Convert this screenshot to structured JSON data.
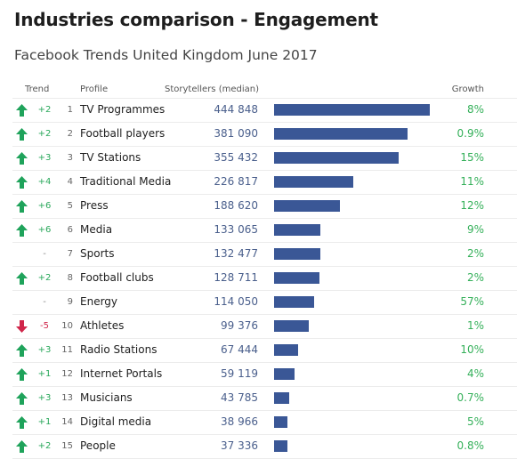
{
  "header": {
    "title": "Industries comparison - Engagement",
    "subtitle": "Facebook Trends United Kingdom June 2017"
  },
  "columns": {
    "trend": "Trend",
    "profile": "Profile",
    "storytellers": "Storytellers (median)",
    "growth": "Growth"
  },
  "colors": {
    "bar": "#3a5796",
    "up_arrow": "#1fa35b",
    "down_arrow": "#d0264a",
    "growth": "#35b05a",
    "value_text": "#4a5f8c"
  },
  "chart_data": {
    "type": "bar",
    "orientation": "horizontal",
    "rows": [
      {
        "rank": "1",
        "profile": "TV Programmes",
        "trend": "up",
        "change": "+2",
        "storytellers": 444848,
        "storytellers_label": "444 848",
        "growth": "8%"
      },
      {
        "rank": "2",
        "profile": "Football players",
        "trend": "up",
        "change": "+2",
        "storytellers": 381090,
        "storytellers_label": "381 090",
        "growth": "0.9%"
      },
      {
        "rank": "3",
        "profile": "TV Stations",
        "trend": "up",
        "change": "+3",
        "storytellers": 355432,
        "storytellers_label": "355 432",
        "growth": "15%"
      },
      {
        "rank": "4",
        "profile": "Traditional Media",
        "trend": "up",
        "change": "+4",
        "storytellers": 226817,
        "storytellers_label": "226 817",
        "growth": "11%"
      },
      {
        "rank": "5",
        "profile": "Press",
        "trend": "up",
        "change": "+6",
        "storytellers": 188620,
        "storytellers_label": "188 620",
        "growth": "12%"
      },
      {
        "rank": "6",
        "profile": "Media",
        "trend": "up",
        "change": "+6",
        "storytellers": 133065,
        "storytellers_label": "133 065",
        "growth": "9%"
      },
      {
        "rank": "7",
        "profile": "Sports",
        "trend": "flat",
        "change": "-",
        "storytellers": 132477,
        "storytellers_label": "132 477",
        "growth": "2%"
      },
      {
        "rank": "8",
        "profile": "Football clubs",
        "trend": "up",
        "change": "+2",
        "storytellers": 128711,
        "storytellers_label": "128 711",
        "growth": "2%"
      },
      {
        "rank": "9",
        "profile": "Energy",
        "trend": "flat",
        "change": "-",
        "storytellers": 114050,
        "storytellers_label": "114 050",
        "growth": "57%"
      },
      {
        "rank": "10",
        "profile": "Athletes",
        "trend": "down",
        "change": "-5",
        "storytellers": 99376,
        "storytellers_label": "99 376",
        "growth": "1%"
      },
      {
        "rank": "11",
        "profile": "Radio Stations",
        "trend": "up",
        "change": "+3",
        "storytellers": 67444,
        "storytellers_label": "67 444",
        "growth": "10%"
      },
      {
        "rank": "12",
        "profile": "Internet Portals",
        "trend": "up",
        "change": "+1",
        "storytellers": 59119,
        "storytellers_label": "59 119",
        "growth": "4%"
      },
      {
        "rank": "13",
        "profile": "Musicians",
        "trend": "up",
        "change": "+3",
        "storytellers": 43785,
        "storytellers_label": "43 785",
        "growth": "0.7%"
      },
      {
        "rank": "14",
        "profile": "Digital media",
        "trend": "up",
        "change": "+1",
        "storytellers": 38966,
        "storytellers_label": "38 966",
        "growth": "5%"
      },
      {
        "rank": "15",
        "profile": "People",
        "trend": "up",
        "change": "+2",
        "storytellers": 37336,
        "storytellers_label": "37 336",
        "growth": "0.8%"
      }
    ]
  }
}
